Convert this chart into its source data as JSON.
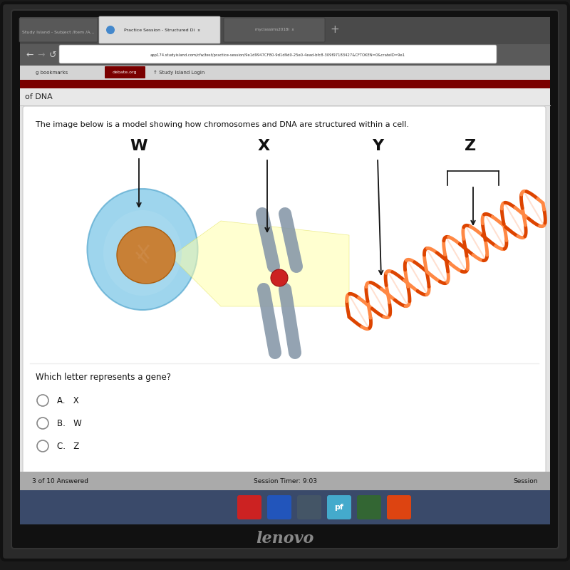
{
  "bg_outer": "#1a1a1a",
  "bg_screen": "#0d0d0d",
  "bg_browser": "#c8c8c8",
  "bg_titlebar": "#4a4a4a",
  "bg_tab_active": "#e0e0e0",
  "bg_tab_inactive": "#5c5c5c",
  "bg_addressbar": "#666666",
  "bg_addr_field": "#ffffff",
  "bg_bookmarks": "#d8d8d8",
  "debate_box_color": "#7a0000",
  "bg_content": "#e8e8e8",
  "bg_darkred_strip": "#7a0000",
  "bg_white_box": "#ffffff",
  "bg_footer": "#888888",
  "bg_taskbar": "#3a4a6a",
  "bg_lenovo_area": "#111111",
  "url_text": "app174.studyisland.com/cfw/test/practice-session/9e1d9947CF80-9d1d9d0-25e0-4ead-bfc8-309f97183427&CFTOKEN=0&crateID=9e1",
  "question_text": "The image below is a model showing how chromosomes and DNA are structured within a cell.",
  "labels": [
    "W",
    "X",
    "Y",
    "Z"
  ],
  "question2": "Which letter represents a gene?",
  "choices": [
    "A.   X",
    "B.   W",
    "C.   Z"
  ],
  "footer_left": "3 of 10 Answered",
  "footer_center": "Session Timer: 9:03",
  "footer_right": "Session",
  "lenovo_text": "lenovo",
  "cell_color": "#87ceeb",
  "nucleus_color": "#cc7722",
  "chrom_color": "#8899aa",
  "helix_color1": "#dd4400",
  "helix_color2": "#ff8844",
  "helix_stripe": "#ffffff",
  "yellow_bg": "#ffffaa",
  "arrow_color": "#111111"
}
